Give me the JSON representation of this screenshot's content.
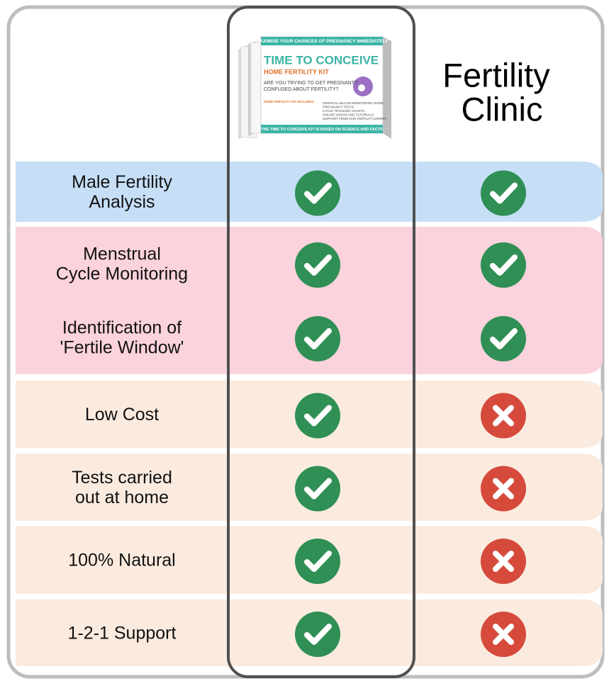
{
  "header": {
    "product": {
      "banner": "MAXIMISE YOUR CHANCES OF PREGNANCY IMMEDIATELY",
      "title": "TIME TO CONCEIVE",
      "subtitle": "HOME FERTILITY KIT",
      "question": [
        "ARE YOU TRYING TO GET PREGNANT?",
        "CONFUSED ABOUT FERTILITY?"
      ],
      "includes": "HOME FERTILITY KIT INCLUDES:",
      "list": [
        "CERVICAL MUCUS MONITORING GUIDE",
        "PREGNANCY TESTS",
        "CYCLE TRACKING CHARTS",
        "ONLINE VIDEOS AND TUTORIALS",
        "SUPPORT FROM OUR FERTILITY EXPERT"
      ],
      "footer": "THE TIME TO CONCEIVE KIT IS BASED ON SCIENCE AND FACTS"
    },
    "clinic_title": [
      "Fertility",
      "Clinic"
    ]
  },
  "groups": [
    {
      "color": "#c6dff7",
      "rows": [
        {
          "label": [
            "Male Fertility",
            "Analysis"
          ],
          "kit": true,
          "clinic": true
        }
      ]
    },
    {
      "color": "#fbd3dc",
      "rows": [
        {
          "label": [
            "Menstrual",
            "Cycle Monitoring"
          ],
          "kit": true,
          "clinic": true
        },
        {
          "label": [
            "Identification of",
            "'Fertile Window'"
          ],
          "kit": true,
          "clinic": true
        }
      ]
    },
    {
      "color": "#fbebdf",
      "rows": [
        {
          "label": [
            "Low Cost"
          ],
          "kit": true,
          "clinic": false
        }
      ]
    },
    {
      "color": "#fbebdf",
      "rows": [
        {
          "label": [
            "Tests carried",
            "out at home"
          ],
          "kit": true,
          "clinic": false
        }
      ]
    },
    {
      "color": "#fbebdf",
      "rows": [
        {
          "label": [
            "100% Natural"
          ],
          "kit": true,
          "clinic": false
        }
      ]
    },
    {
      "color": "#fbebdf",
      "rows": [
        {
          "label": [
            "1-2-1 Support"
          ],
          "kit": true,
          "clinic": false
        }
      ]
    }
  ]
}
